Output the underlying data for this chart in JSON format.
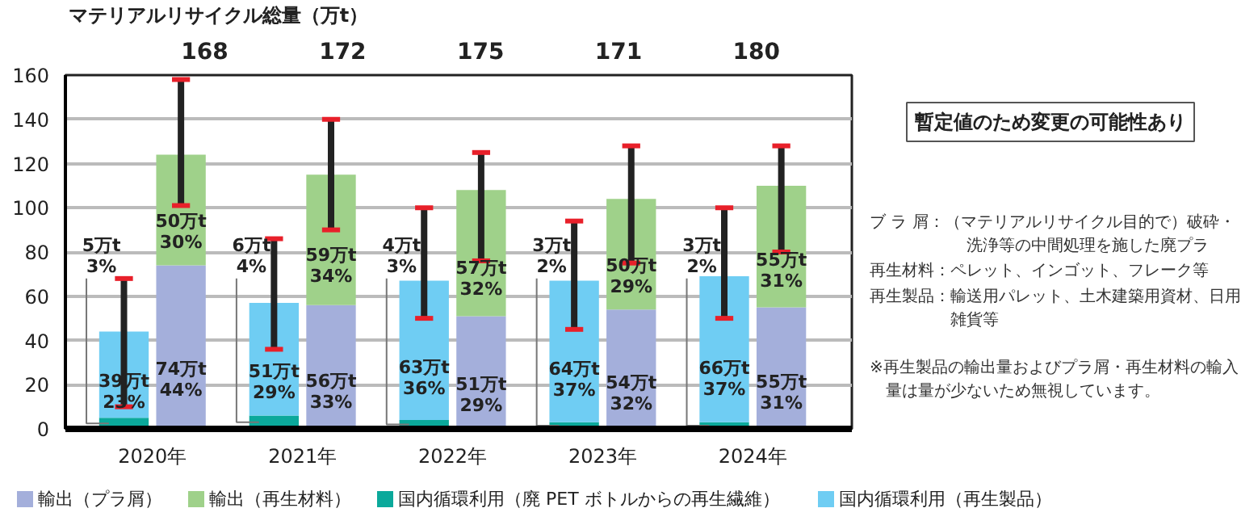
{
  "chart_data": {
    "type": "bar",
    "stacked": true,
    "ylabel": "マテリアルリサイクル総量（万t）",
    "x": [
      2019.81,
      2020.19,
      2020.81,
      2021.19,
      2021.81,
      2022.19,
      2022.81,
      2023.19,
      2023.81,
      2024.19
    ],
    "xlim": [
      2019.42,
      2024.66
    ],
    "xticks": [
      {
        "value": 2020,
        "label": "2020年"
      },
      {
        "value": 2021,
        "label": "2021年"
      },
      {
        "value": 2022,
        "label": "2022年"
      },
      {
        "value": 2023,
        "label": "2023年"
      },
      {
        "value": 2024,
        "label": "2024年"
      }
    ],
    "ylim": [
      0,
      160
    ],
    "yticks": [
      0,
      20,
      40,
      60,
      80,
      100,
      120,
      140,
      160
    ],
    "grid": "y",
    "legend": "bottom",
    "series": [
      {
        "name": "輸出（プラ屑）",
        "color": "#a4afdb",
        "values": [
          null,
          74,
          null,
          56,
          null,
          51,
          null,
          54,
          null,
          55
        ],
        "value_labels": [
          null,
          "74万t\n44%",
          null,
          "56万t\n33%",
          null,
          "51万t\n29%",
          null,
          "54万t\n32%",
          null,
          "55万t\n31%"
        ]
      },
      {
        "name": "輸出（再生材料）",
        "color": "#9fd18a",
        "values": [
          null,
          50,
          null,
          59,
          null,
          57,
          null,
          50,
          null,
          55
        ],
        "value_labels": [
          null,
          "50万t\n30%",
          null,
          "59万t\n34%",
          null,
          "57万t\n32%",
          null,
          "50万t\n29%",
          null,
          "55万t\n31%"
        ],
        "errors": [
          null,
          [
            101,
            158
          ],
          null,
          [
            90,
            140
          ],
          null,
          [
            76,
            125
          ],
          null,
          [
            75,
            128
          ],
          null,
          [
            80,
            128
          ]
        ]
      },
      {
        "name": "国内循環利用（廃 PET ボトルからの再生繊維）",
        "color": "#0ba99b",
        "values": [
          5,
          null,
          6,
          null,
          4,
          null,
          3,
          null,
          3,
          null
        ],
        "value_labels": [
          "5万t\n3%",
          null,
          "6万t\n4%",
          null,
          "4万t\n3%",
          null,
          "3万t\n2%",
          null,
          "3万t\n2%",
          null
        ]
      },
      {
        "name": "国内循環利用（再生製品）",
        "color": "#6fcdf3",
        "values": [
          39,
          null,
          51,
          null,
          63,
          null,
          64,
          null,
          66,
          null
        ],
        "value_labels": [
          "39万t\n23%",
          null,
          "51万t\n29%",
          null,
          "63万t\n36%",
          null,
          "64万t\n37%",
          null,
          "66万t\n37%",
          null
        ],
        "errors": [
          [
            10,
            68
          ],
          null,
          [
            36,
            86
          ],
          null,
          [
            50,
            100
          ],
          null,
          [
            45,
            94
          ],
          null,
          [
            50,
            100
          ],
          null
        ]
      }
    ],
    "annotations": [
      "168",
      "172",
      "175",
      "171",
      "180",
      "暫定値のため変更の可能性あり",
      "ブ ラ 屑：（マテリアルリサイクル目的で）破砕・洗浄等の中間処理を施した廃プラ",
      "再生材料：ペレット、インゴット、フレーク等",
      "再生製品：輸送用パレット、土木建築用資材、日用雑貨等",
      "※再生製品の輸出量およびプラ屑・再生材料の輸入量は量が少ないため無視しています。"
    ]
  }
}
